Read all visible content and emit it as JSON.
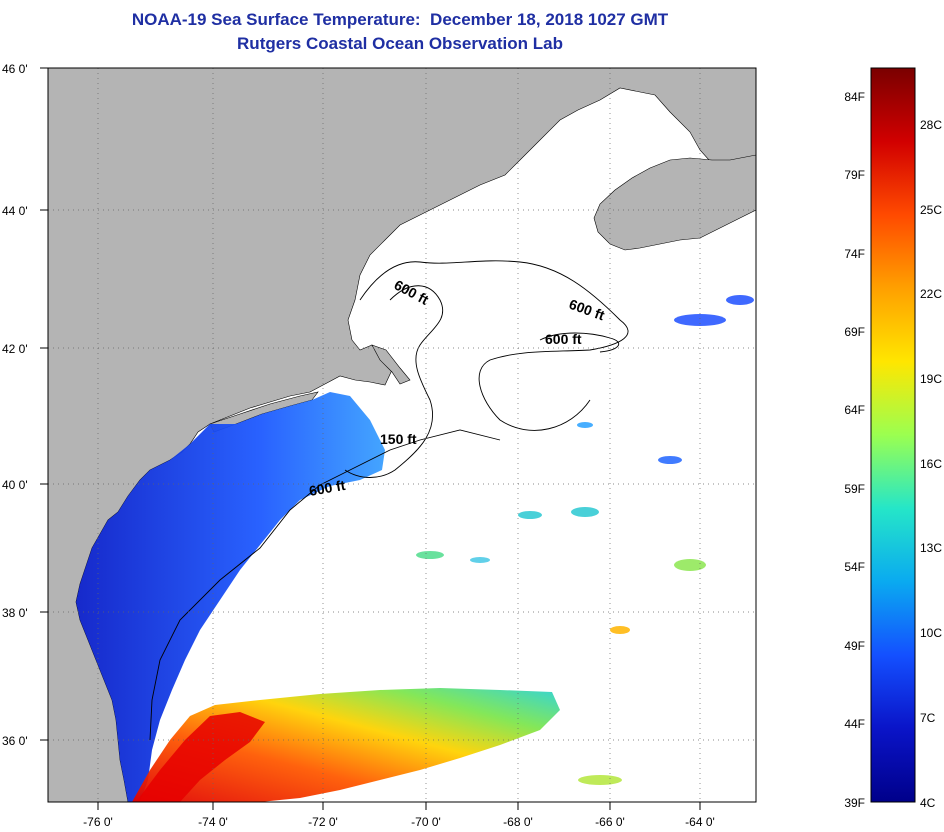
{
  "title": {
    "line1": "NOAA-19 Sea Surface Temperature:  December 18, 2018 1027 GMT",
    "line2": "Rutgers Coastal Ocean Observation Lab"
  },
  "map": {
    "lat_labels": [
      "46 0'",
      "44 0'",
      "42 0'",
      "40 0'",
      "38 0'",
      "36 0'"
    ],
    "lon_labels": [
      "-76 0'",
      "-74 0'",
      "-72 0'",
      "-70 0'",
      "-68 0'",
      "-66 0'",
      "-64 0'"
    ],
    "contour_labels": [
      "600 ft",
      "600 ft",
      "600 ft",
      "150 ft",
      "600 ft"
    ],
    "colors": {
      "land": "#b4b4b4",
      "cloud": "#ffffff",
      "warm": "#ff2a00",
      "cold": "#0a2ad8"
    }
  },
  "colorbar": {
    "fahrenheit": [
      "84F",
      "79F",
      "74F",
      "69F",
      "64F",
      "59F",
      "54F",
      "49F",
      "44F",
      "39F"
    ],
    "celsius": [
      "28C",
      "25C",
      "22C",
      "19C",
      "16C",
      "13C",
      "10C",
      "7C",
      "4C"
    ],
    "range_f": [
      39,
      86
    ],
    "colors": [
      "#7a0000",
      "#d10000",
      "#ff4a00",
      "#ffa000",
      "#ffe600",
      "#9bff50",
      "#25e6c8",
      "#0aaaf0",
      "#1450ff",
      "#0a14c8",
      "#00008a"
    ]
  }
}
